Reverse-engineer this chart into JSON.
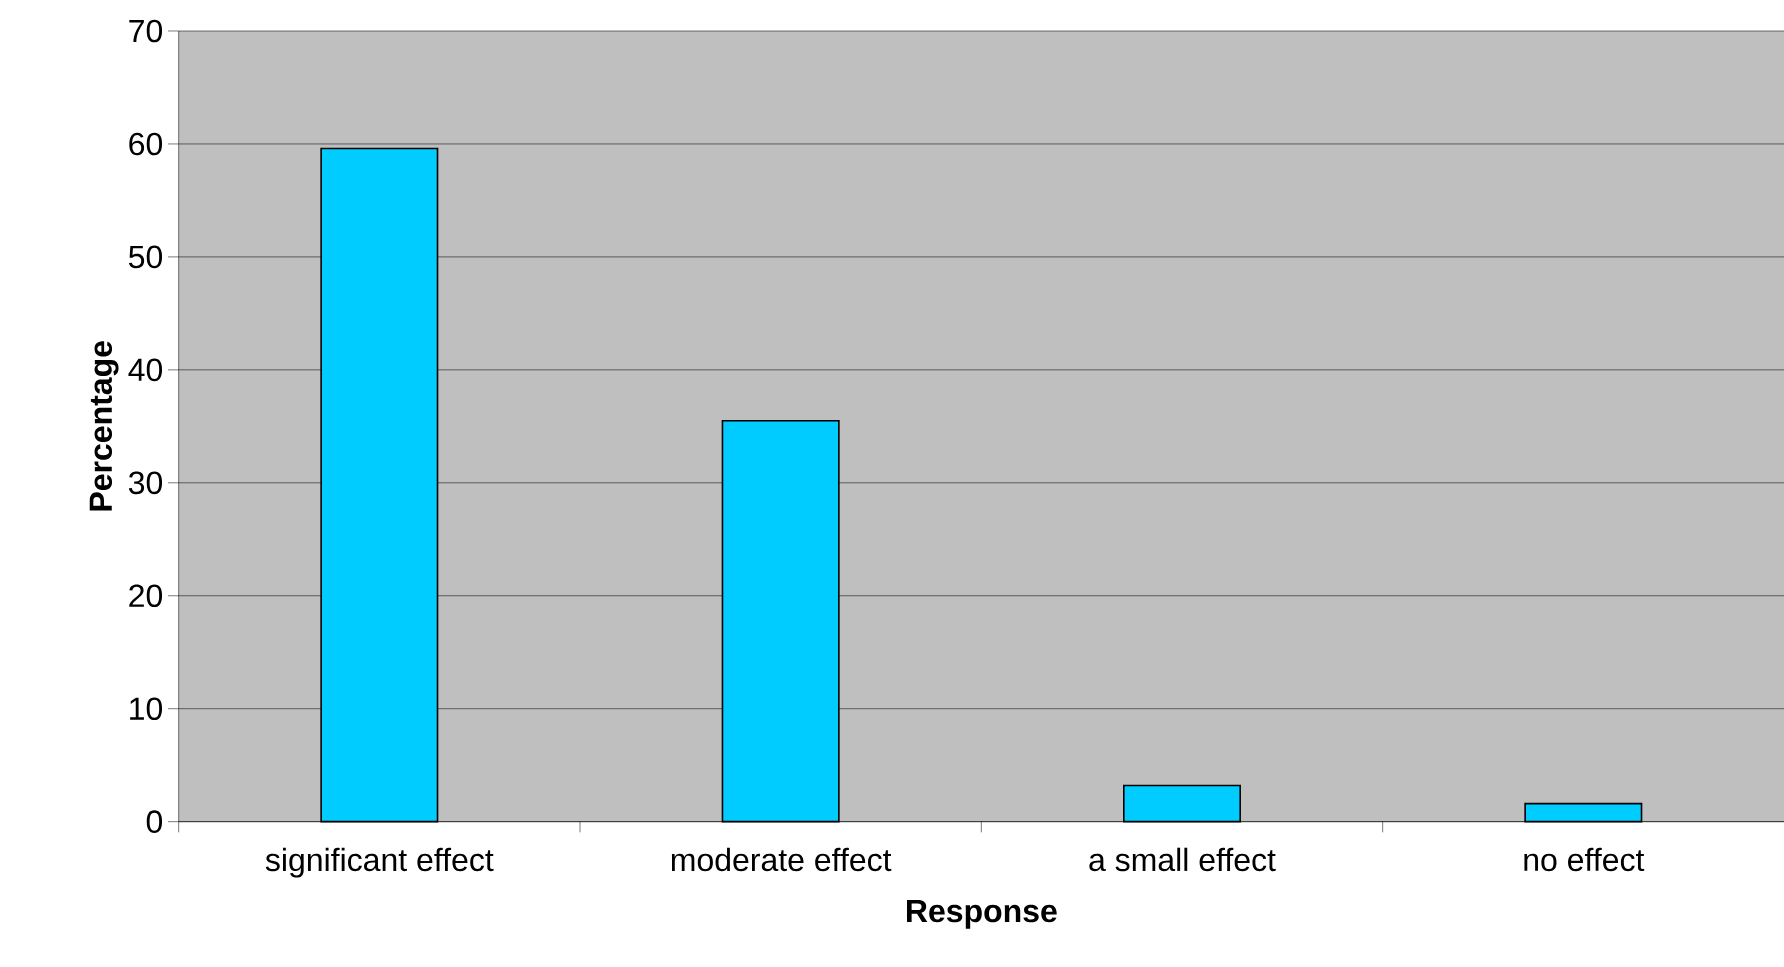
{
  "chart_data": {
    "type": "bar",
    "xlabel": "Response",
    "ylabel": "Percentage",
    "categories": [
      "significant effect",
      "moderate effect",
      "a small effect",
      "no effect"
    ],
    "values": [
      59.6,
      35.5,
      3.2,
      1.6
    ],
    "color": "#00ccff",
    "ylim": [
      0,
      70
    ],
    "yticks": [
      0,
      10,
      20,
      30,
      40,
      50,
      60,
      70
    ],
    "grid": "y"
  }
}
